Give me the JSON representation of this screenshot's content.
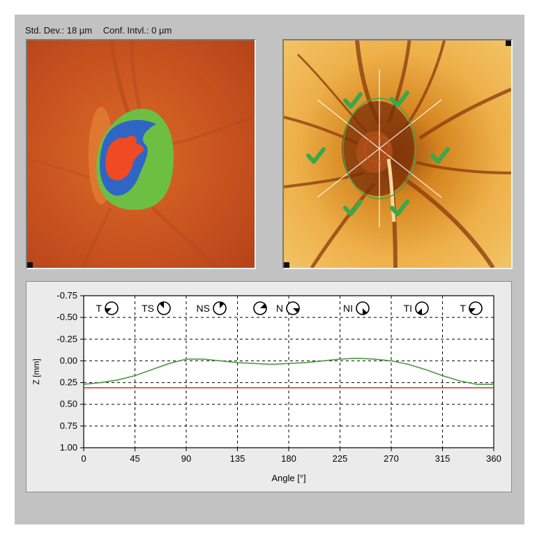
{
  "header": {
    "std_dev": "Std. Dev.: 18 µm",
    "conf_intvl": "Conf. Intvl.: 0 µm"
  },
  "images": {
    "left": {
      "name": "topography-map",
      "colors": {
        "background": "#c9531f",
        "cup": "#ef4a22",
        "rim_blue": "#2f66c6",
        "rim_green": "#6cbf43"
      }
    },
    "right": {
      "name": "reflectance-image",
      "colors": {
        "background": "#e9a43a",
        "marker": "#39a84c"
      }
    }
  },
  "chart_data": {
    "type": "line",
    "xlabel": "Angle [°]",
    "ylabel": "Z [mm]",
    "xlim": [
      0,
      360
    ],
    "ylim": [
      -0.75,
      1.0
    ],
    "y_inverted": true,
    "x_ticks": [
      "0",
      "45",
      "90",
      "135",
      "180",
      "225",
      "270",
      "315",
      "360"
    ],
    "y_ticks": [
      "-0.75",
      "-0.50",
      "-0.25",
      "0.00",
      "0.25",
      "0.50",
      "0.75",
      "1.00"
    ],
    "grid": true,
    "sectors": [
      {
        "label": "T",
        "icon": "T"
      },
      {
        "label": "TS",
        "icon": "TS"
      },
      {
        "label": "NS",
        "icon": "NS"
      },
      {
        "label": "",
        "icon": "NS2"
      },
      {
        "label": "N",
        "icon": "N"
      },
      {
        "label": "NI",
        "icon": "NI"
      },
      {
        "label": "TI",
        "icon": "TI"
      },
      {
        "label": "T",
        "icon": "T"
      }
    ],
    "series": [
      {
        "color": "#4a9a3e",
        "x": [
          0,
          15,
          30,
          45,
          60,
          75,
          90,
          105,
          120,
          135,
          150,
          165,
          180,
          195,
          210,
          225,
          240,
          255,
          270,
          285,
          300,
          315,
          330,
          345,
          360
        ],
        "y": [
          0.27,
          0.25,
          0.22,
          0.17,
          0.1,
          0.03,
          -0.02,
          -0.02,
          0.0,
          0.02,
          0.03,
          0.04,
          0.03,
          0.02,
          0.0,
          -0.02,
          -0.03,
          -0.02,
          0.0,
          0.04,
          0.1,
          0.17,
          0.23,
          0.27,
          0.27
        ]
      },
      {
        "color": "#cc3020",
        "x": [
          0,
          360
        ],
        "y": [
          0.31,
          0.31
        ]
      }
    ]
  }
}
